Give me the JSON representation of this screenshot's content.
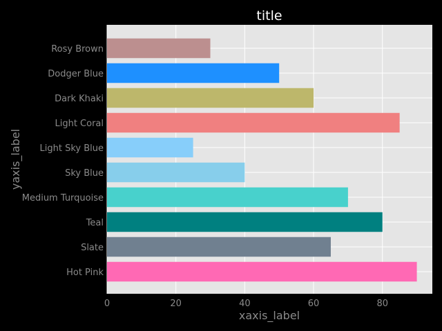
{
  "chart_data": {
    "type": "bar",
    "orientation": "horizontal",
    "title": "title",
    "xlabel": "xaxis_label",
    "ylabel": "yaxis_label",
    "categories": [
      "Rosy Brown",
      "Dodger Blue",
      "Dark Khaki",
      "Light Coral",
      "Light Sky Blue",
      "Sky Blue",
      "Medium Turquoise",
      "Teal",
      "Slate",
      "Hot Pink"
    ],
    "values": [
      30,
      50,
      60,
      85,
      25,
      40,
      70,
      80,
      65,
      90
    ],
    "colors": [
      "#bc8f8f",
      "#1e90ff",
      "#bdb76b",
      "#f08080",
      "#87cefa",
      "#87ceeb",
      "#48d1cc",
      "#008080",
      "#708090",
      "#ff69b4"
    ],
    "xlim": [
      0,
      94.5
    ],
    "xticks": [
      0,
      20,
      40,
      60,
      80
    ],
    "grid": true,
    "background": "#e5e5e5",
    "grid_color": "#ffffff"
  }
}
